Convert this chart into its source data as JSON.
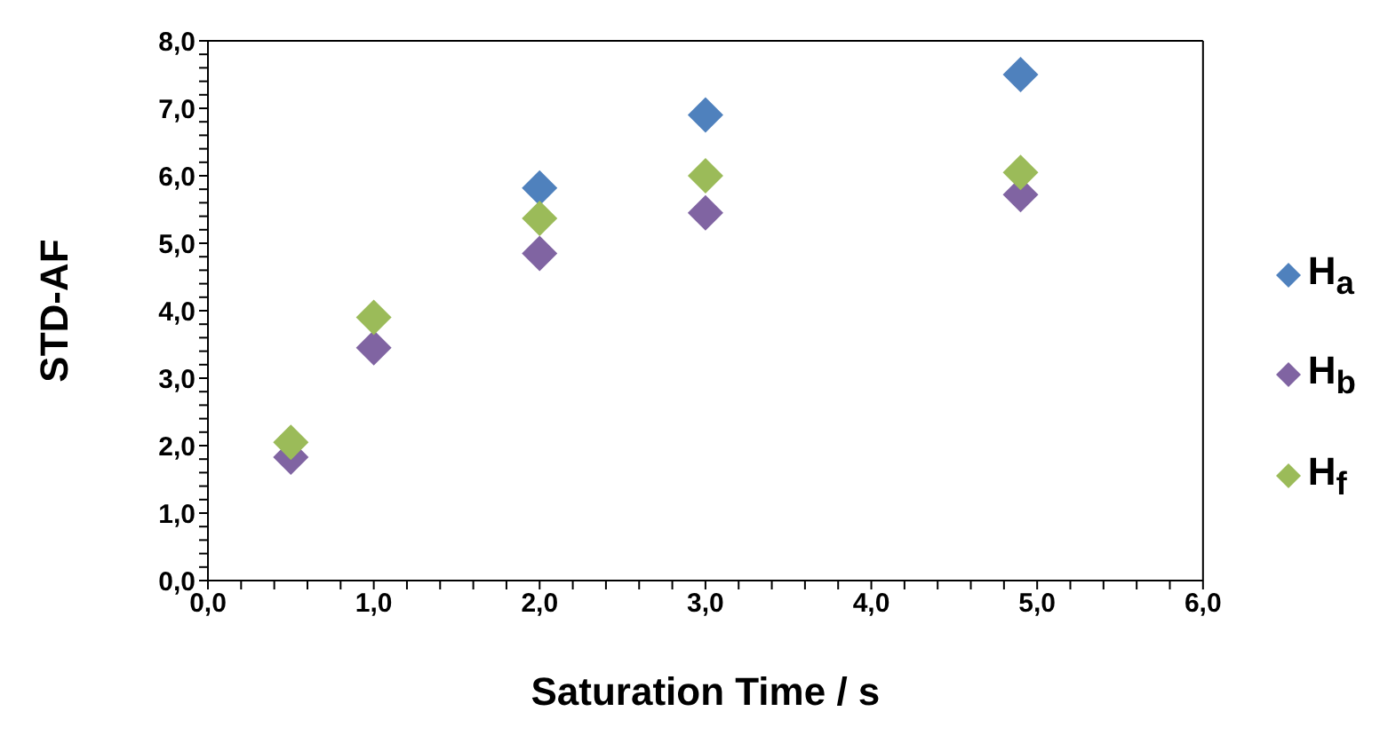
{
  "chart_data": {
    "type": "scatter",
    "xlabel": "Saturation Time / s",
    "ylabel": "STD-AF",
    "x": [
      0.5,
      1.0,
      2.0,
      3.0,
      4.9
    ],
    "series": [
      {
        "name": "H$_{a}$",
        "color": "#4f81bd",
        "values": [
          null,
          null,
          5.82,
          6.9,
          7.5
        ]
      },
      {
        "name": "H$_{b}$",
        "color": "#8064a2",
        "values": [
          1.83,
          3.45,
          4.85,
          5.45,
          5.72
        ]
      },
      {
        "name": "H$_{f}$",
        "color": "#9bbb59",
        "values": [
          2.05,
          3.9,
          5.37,
          6.0,
          6.05
        ]
      }
    ],
    "xlim": [
      0,
      6
    ],
    "ylim": [
      0,
      8
    ],
    "xticks": [
      {
        "value": 0,
        "label": "0,0"
      },
      {
        "value": 0.2,
        "label": null
      },
      {
        "value": 0.4,
        "label": null
      },
      {
        "value": 0.6,
        "label": null
      },
      {
        "value": 0.8,
        "label": null
      },
      {
        "value": 1,
        "label": "1,0"
      },
      {
        "value": 1.2,
        "label": null
      },
      {
        "value": 1.4,
        "label": null
      },
      {
        "value": 1.6,
        "label": null
      },
      {
        "value": 1.8,
        "label": null
      },
      {
        "value": 2,
        "label": "2,0"
      },
      {
        "value": 2.2,
        "label": null
      },
      {
        "value": 2.4,
        "label": null
      },
      {
        "value": 2.6,
        "label": null
      },
      {
        "value": 2.8,
        "label": null
      },
      {
        "value": 3,
        "label": "3,0"
      },
      {
        "value": 3.2,
        "label": null
      },
      {
        "value": 3.4,
        "label": null
      },
      {
        "value": 3.6,
        "label": null
      },
      {
        "value": 3.8,
        "label": null
      },
      {
        "value": 4,
        "label": "4,0"
      },
      {
        "value": 4.2,
        "label": null
      },
      {
        "value": 4.4,
        "label": null
      },
      {
        "value": 4.6,
        "label": null
      },
      {
        "value": 4.8,
        "label": null
      },
      {
        "value": 5,
        "label": "5,0"
      },
      {
        "value": 5.2,
        "label": null
      },
      {
        "value": 5.4,
        "label": null
      },
      {
        "value": 5.6,
        "label": null
      },
      {
        "value": 5.8,
        "label": null
      },
      {
        "value": 6,
        "label": "6,0"
      }
    ],
    "yticks": [
      {
        "value": 0,
        "label": "0,0"
      },
      {
        "value": 0.2,
        "label": null
      },
      {
        "value": 0.4,
        "label": null
      },
      {
        "value": 0.6,
        "label": null
      },
      {
        "value": 0.8,
        "label": null
      },
      {
        "value": 1,
        "label": "1,0"
      },
      {
        "value": 1.2,
        "label": null
      },
      {
        "value": 1.4,
        "label": null
      },
      {
        "value": 1.6,
        "label": null
      },
      {
        "value": 1.8,
        "label": null
      },
      {
        "value": 2,
        "label": "2,0"
      },
      {
        "value": 2.2,
        "label": null
      },
      {
        "value": 2.4,
        "label": null
      },
      {
        "value": 2.6,
        "label": null
      },
      {
        "value": 2.8,
        "label": null
      },
      {
        "value": 3,
        "label": "3,0"
      },
      {
        "value": 3.2,
        "label": null
      },
      {
        "value": 3.4,
        "label": null
      },
      {
        "value": 3.6,
        "label": null
      },
      {
        "value": 3.8,
        "label": null
      },
      {
        "value": 4,
        "label": "4,0"
      },
      {
        "value": 4.2,
        "label": null
      },
      {
        "value": 4.4,
        "label": null
      },
      {
        "value": 4.6,
        "label": null
      },
      {
        "value": 4.8,
        "label": null
      },
      {
        "value": 5,
        "label": "5,0"
      },
      {
        "value": 5.2,
        "label": null
      },
      {
        "value": 5.4,
        "label": null
      },
      {
        "value": 5.6,
        "label": null
      },
      {
        "value": 5.8,
        "label": null
      },
      {
        "value": 6,
        "label": "6,0"
      },
      {
        "value": 6.2,
        "label": null
      },
      {
        "value": 6.4,
        "label": null
      },
      {
        "value": 6.6,
        "label": null
      },
      {
        "value": 6.8,
        "label": null
      },
      {
        "value": 7,
        "label": "7,0"
      },
      {
        "value": 7.2,
        "label": null
      },
      {
        "value": 7.4,
        "label": null
      },
      {
        "value": 7.6,
        "label": null
      },
      {
        "value": 7.8,
        "label": null
      },
      {
        "value": 8,
        "label": "8,0"
      }
    ],
    "marker": "diamond",
    "legend": "right",
    "grid": false
  }
}
